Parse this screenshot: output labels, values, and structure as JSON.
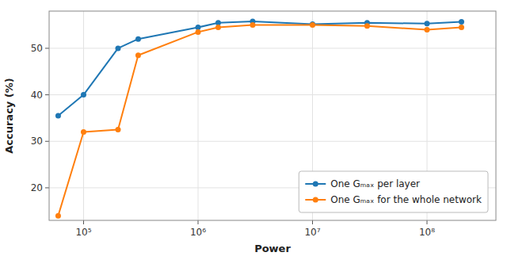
{
  "chart_data": {
    "type": "line",
    "x": [
      60000,
      100000,
      200000,
      300000,
      1000000,
      1500000,
      3000000,
      10000000,
      30000000,
      100000000,
      200000000
    ],
    "series": [
      {
        "name": "One Gₘₐₓ per layer",
        "color": "#1f77b4",
        "values": [
          35.5,
          40.0,
          50.0,
          52.0,
          54.5,
          55.5,
          55.8,
          55.2,
          55.5,
          55.3,
          55.7
        ]
      },
      {
        "name": "One Gₘₐₓ for the whole network",
        "color": "#ff7f0e",
        "values": [
          14.0,
          32.0,
          32.5,
          48.5,
          53.5,
          54.5,
          55.0,
          55.0,
          54.8,
          54.0,
          54.5
        ]
      }
    ],
    "xlabel": "Power",
    "ylabel": "Accuracy (%)",
    "xlim": [
      50000,
      400000000
    ],
    "ylim": [
      13,
      58
    ],
    "xticks": [
      {
        "value": 100000,
        "label": "10⁵"
      },
      {
        "value": 1000000,
        "label": "10⁶"
      },
      {
        "value": 10000000,
        "label": "10⁷"
      },
      {
        "value": 100000000,
        "label": "10⁸"
      }
    ],
    "yticks": [
      20,
      30,
      40,
      50
    ],
    "log": "x",
    "grid": true,
    "legend": "lower right",
    "marker": "circle"
  }
}
